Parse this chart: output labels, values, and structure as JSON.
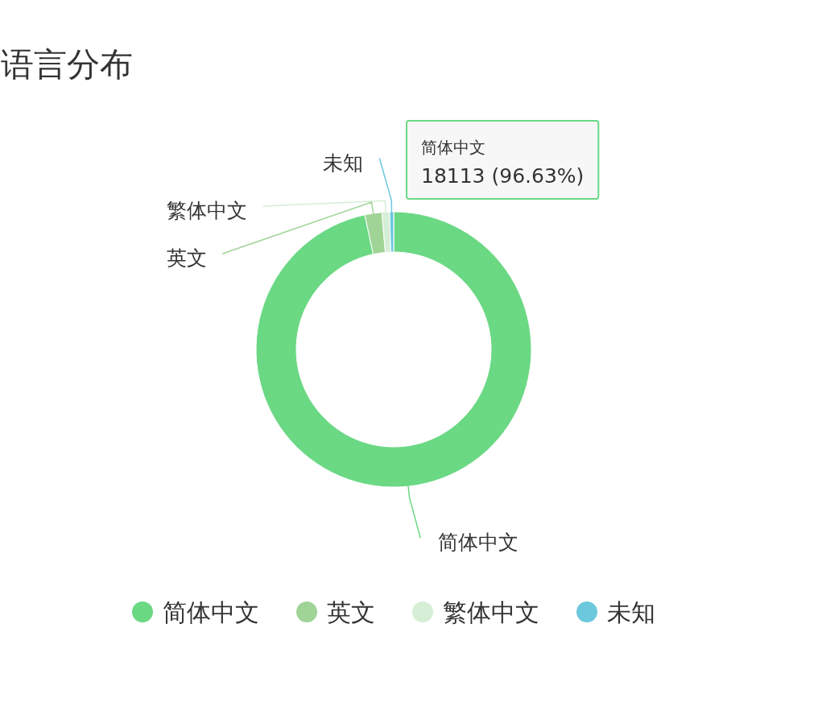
{
  "chart_data": {
    "type": "donut",
    "title": "语言分布",
    "categories": [
      "简体中文",
      "英文",
      "繁体中文",
      "未知"
    ],
    "values": [
      96.63,
      2.0,
      0.9,
      0.47
    ],
    "colors": [
      "#6bd884",
      "#9fd496",
      "#d5eed6",
      "#6cc8dd"
    ],
    "legend": "bottom",
    "annotations": [
      "简体中文",
      "18113 (96.63%)"
    ]
  }
}
